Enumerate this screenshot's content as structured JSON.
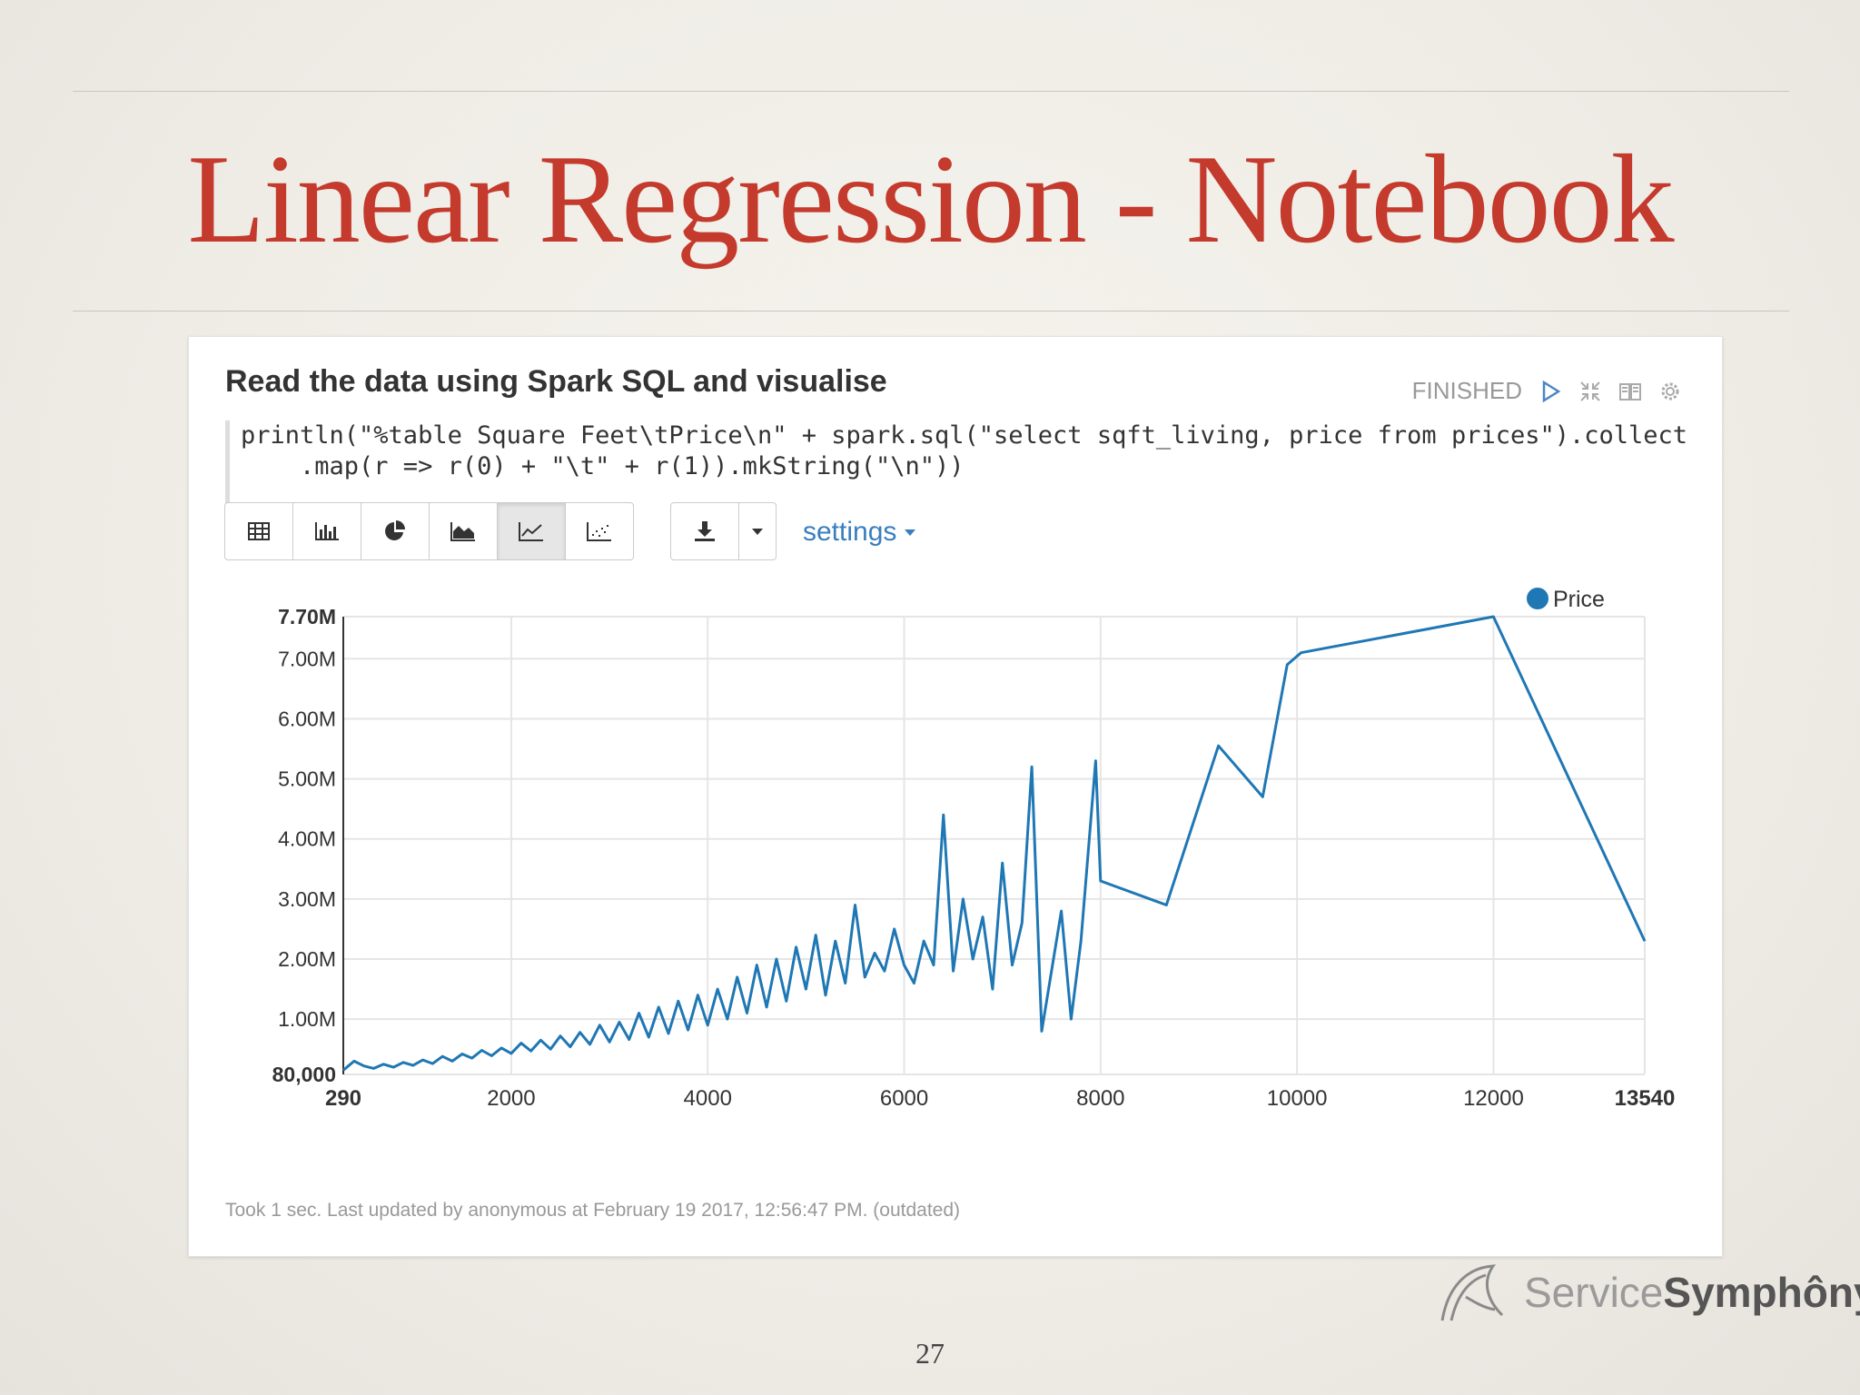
{
  "slide": {
    "title": "Linear Regression - Notebook",
    "page_number": "27"
  },
  "paragraph": {
    "title": "Read the data using Spark SQL and visualise",
    "status": "FINISHED",
    "code_line1_a": "println(\"%table Square Feet\\tPrice\\n\"",
    "code_line1_b": " + spark.sql(\"select sqft_living, price from prices\").collect",
    "code_line2": "    .map(r => r(0) + \"\\t\" + r(1)).mkString(\"\\n\"))",
    "settings_label": "settings",
    "footer": "Took 1 sec. Last updated by anonymous at February 19 2017, 12:56:47 PM. (outdated)"
  },
  "toolbar": {
    "buttons": [
      "table-icon",
      "bar-chart-icon",
      "pie-chart-icon",
      "area-chart-icon",
      "line-chart-icon",
      "scatter-chart-icon"
    ],
    "active": "line-chart-icon"
  },
  "logo": {
    "text_light": "Service",
    "text_bold": "Symphôny"
  },
  "colors": {
    "title": "#c43a2c",
    "series": "#1f77b4",
    "link": "#3a7ebf"
  },
  "chart_data": {
    "type": "line",
    "series": [
      {
        "name": "Price"
      }
    ],
    "legend": "top-right",
    "grid": true,
    "xlim": [
      290,
      13540
    ],
    "ylim": [
      80000,
      7700000
    ],
    "x_ticks": [
      "290",
      "2000",
      "4000",
      "6000",
      "8000",
      "10000",
      "12000",
      "13540"
    ],
    "y_ticks": [
      "80,000",
      "1.00M",
      "2.00M",
      "3.00M",
      "4.00M",
      "5.00M",
      "6.00M",
      "7.00M",
      "7.70M"
    ],
    "y_tick_values": [
      80000,
      1000000,
      2000000,
      3000000,
      4000000,
      5000000,
      6000000,
      7000000,
      7700000
    ],
    "x_tick_values": [
      290,
      2000,
      4000,
      6000,
      8000,
      10000,
      12000,
      13540
    ],
    "points": [
      [
        290,
        150000
      ],
      [
        400,
        300000
      ],
      [
        500,
        220000
      ],
      [
        600,
        180000
      ],
      [
        700,
        250000
      ],
      [
        800,
        200000
      ],
      [
        900,
        280000
      ],
      [
        1000,
        230000
      ],
      [
        1100,
        320000
      ],
      [
        1200,
        260000
      ],
      [
        1300,
        380000
      ],
      [
        1400,
        300000
      ],
      [
        1500,
        420000
      ],
      [
        1600,
        350000
      ],
      [
        1700,
        480000
      ],
      [
        1800,
        390000
      ],
      [
        1900,
        520000
      ],
      [
        2000,
        430000
      ],
      [
        2100,
        600000
      ],
      [
        2200,
        470000
      ],
      [
        2300,
        650000
      ],
      [
        2400,
        500000
      ],
      [
        2500,
        720000
      ],
      [
        2600,
        540000
      ],
      [
        2700,
        780000
      ],
      [
        2800,
        580000
      ],
      [
        2900,
        900000
      ],
      [
        3000,
        620000
      ],
      [
        3100,
        950000
      ],
      [
        3200,
        660000
      ],
      [
        3300,
        1100000
      ],
      [
        3400,
        700000
      ],
      [
        3500,
        1200000
      ],
      [
        3600,
        760000
      ],
      [
        3700,
        1300000
      ],
      [
        3800,
        820000
      ],
      [
        3900,
        1400000
      ],
      [
        4000,
        900000
      ],
      [
        4100,
        1500000
      ],
      [
        4200,
        1000000
      ],
      [
        4300,
        1700000
      ],
      [
        4400,
        1100000
      ],
      [
        4500,
        1900000
      ],
      [
        4600,
        1200000
      ],
      [
        4700,
        2000000
      ],
      [
        4800,
        1300000
      ],
      [
        4900,
        2200000
      ],
      [
        5000,
        1500000
      ],
      [
        5100,
        2400000
      ],
      [
        5200,
        1400000
      ],
      [
        5300,
        2300000
      ],
      [
        5400,
        1600000
      ],
      [
        5500,
        2900000
      ],
      [
        5600,
        1700000
      ],
      [
        5700,
        2100000
      ],
      [
        5800,
        1800000
      ],
      [
        5900,
        2500000
      ],
      [
        6000,
        1900000
      ],
      [
        6100,
        1600000
      ],
      [
        6200,
        2300000
      ],
      [
        6300,
        1900000
      ],
      [
        6400,
        4400000
      ],
      [
        6500,
        1800000
      ],
      [
        6600,
        3000000
      ],
      [
        6700,
        2000000
      ],
      [
        6800,
        2700000
      ],
      [
        6900,
        1500000
      ],
      [
        7000,
        3600000
      ],
      [
        7100,
        1900000
      ],
      [
        7200,
        2600000
      ],
      [
        7300,
        5200000
      ],
      [
        7400,
        800000
      ],
      [
        7500,
        1800000
      ],
      [
        7600,
        2800000
      ],
      [
        7700,
        1000000
      ],
      [
        7800,
        2300000
      ],
      [
        7950,
        5300000
      ],
      [
        8000,
        3300000
      ],
      [
        8670,
        2900000
      ],
      [
        9200,
        5550000
      ],
      [
        9650,
        4700000
      ],
      [
        9900,
        6900000
      ],
      [
        10040,
        7100000
      ],
      [
        12000,
        7700000
      ],
      [
        13540,
        2300000
      ]
    ]
  }
}
